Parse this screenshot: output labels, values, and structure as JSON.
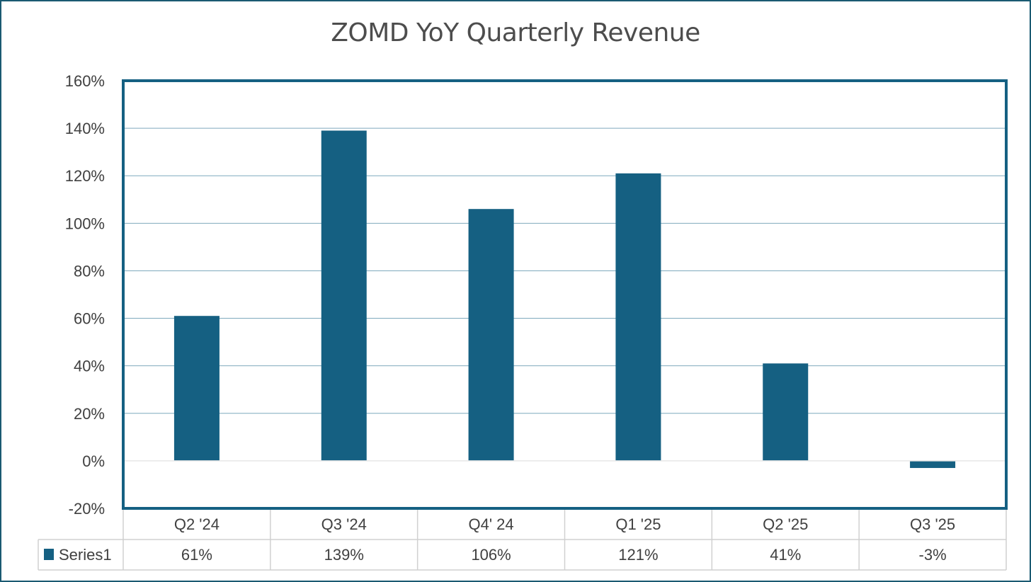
{
  "chart_data": {
    "type": "bar",
    "title": "ZOMD YoY Quarterly Revenue",
    "categories": [
      "Q2 '24",
      "Q3 '24",
      "Q4' 24",
      "Q1 '25",
      "Q2 '25",
      "Q3 '25"
    ],
    "series": [
      {
        "name": "Series1",
        "values": [
          61,
          139,
          106,
          121,
          41,
          -3
        ],
        "labels": [
          "61%",
          "139%",
          "106%",
          "121%",
          "41%",
          "-3%"
        ]
      }
    ],
    "y_ticks": [
      "-20%",
      "0%",
      "20%",
      "40%",
      "60%",
      "80%",
      "100%",
      "120%",
      "140%",
      "160%"
    ],
    "ylim": [
      -20,
      160
    ],
    "y_unit": "percent",
    "grid": true,
    "legend": "data-table-left",
    "data_table": true,
    "colors": {
      "bar": "#156082",
      "plot_border": "#156082",
      "gridline": "#7fa9bd",
      "frame": "#1a5a72",
      "text": "#404040",
      "title": "#4d4d4d",
      "table_border": "#d0d0d0"
    }
  }
}
